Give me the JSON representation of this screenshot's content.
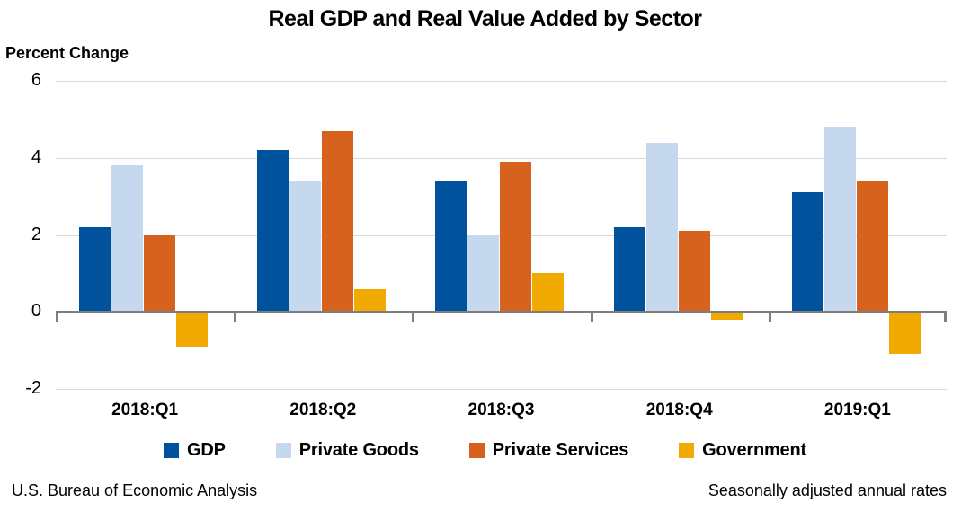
{
  "title": "Real GDP and Real Value Added by Sector",
  "y_axis_label": "Percent Change",
  "footer": {
    "left": "U.S. Bureau of Economic Analysis",
    "right": "Seasonally adjusted annual rates"
  },
  "colors": {
    "gdp": "#00529C",
    "private_goods": "#C5D8EE",
    "private_services": "#D7621E",
    "government": "#F1AB00",
    "gridline": "#D9D9D9",
    "axis": "#7F7F7F",
    "background": "#FFFFFF",
    "text": "#000000"
  },
  "chart_data": {
    "type": "bar",
    "title": "Real GDP and Real Value Added by Sector",
    "xlabel": "",
    "ylabel": "Percent Change",
    "categories": [
      "2018:Q1",
      "2018:Q2",
      "2018:Q3",
      "2018:Q4",
      "2019:Q1"
    ],
    "series": [
      {
        "name": "GDP",
        "color": "#00529C",
        "values": [
          2.2,
          4.2,
          3.4,
          2.2,
          3.1
        ]
      },
      {
        "name": "Private Goods",
        "color": "#C5D8EE",
        "values": [
          3.8,
          3.4,
          2.0,
          4.4,
          4.8
        ]
      },
      {
        "name": "Private Services",
        "color": "#D7621E",
        "values": [
          2.0,
          4.7,
          3.9,
          2.1,
          3.4
        ]
      },
      {
        "name": "Government",
        "color": "#F1AB00",
        "values": [
          -0.9,
          0.6,
          1.0,
          -0.2,
          -1.1
        ]
      }
    ],
    "ylim": [
      -2,
      6
    ],
    "yticks": [
      6,
      4,
      2,
      0,
      -2
    ],
    "grid": "horizontal",
    "legend_position": "bottom",
    "annotations": {
      "source": "U.S. Bureau of Economic Analysis",
      "note": "Seasonally adjusted annual rates"
    }
  }
}
